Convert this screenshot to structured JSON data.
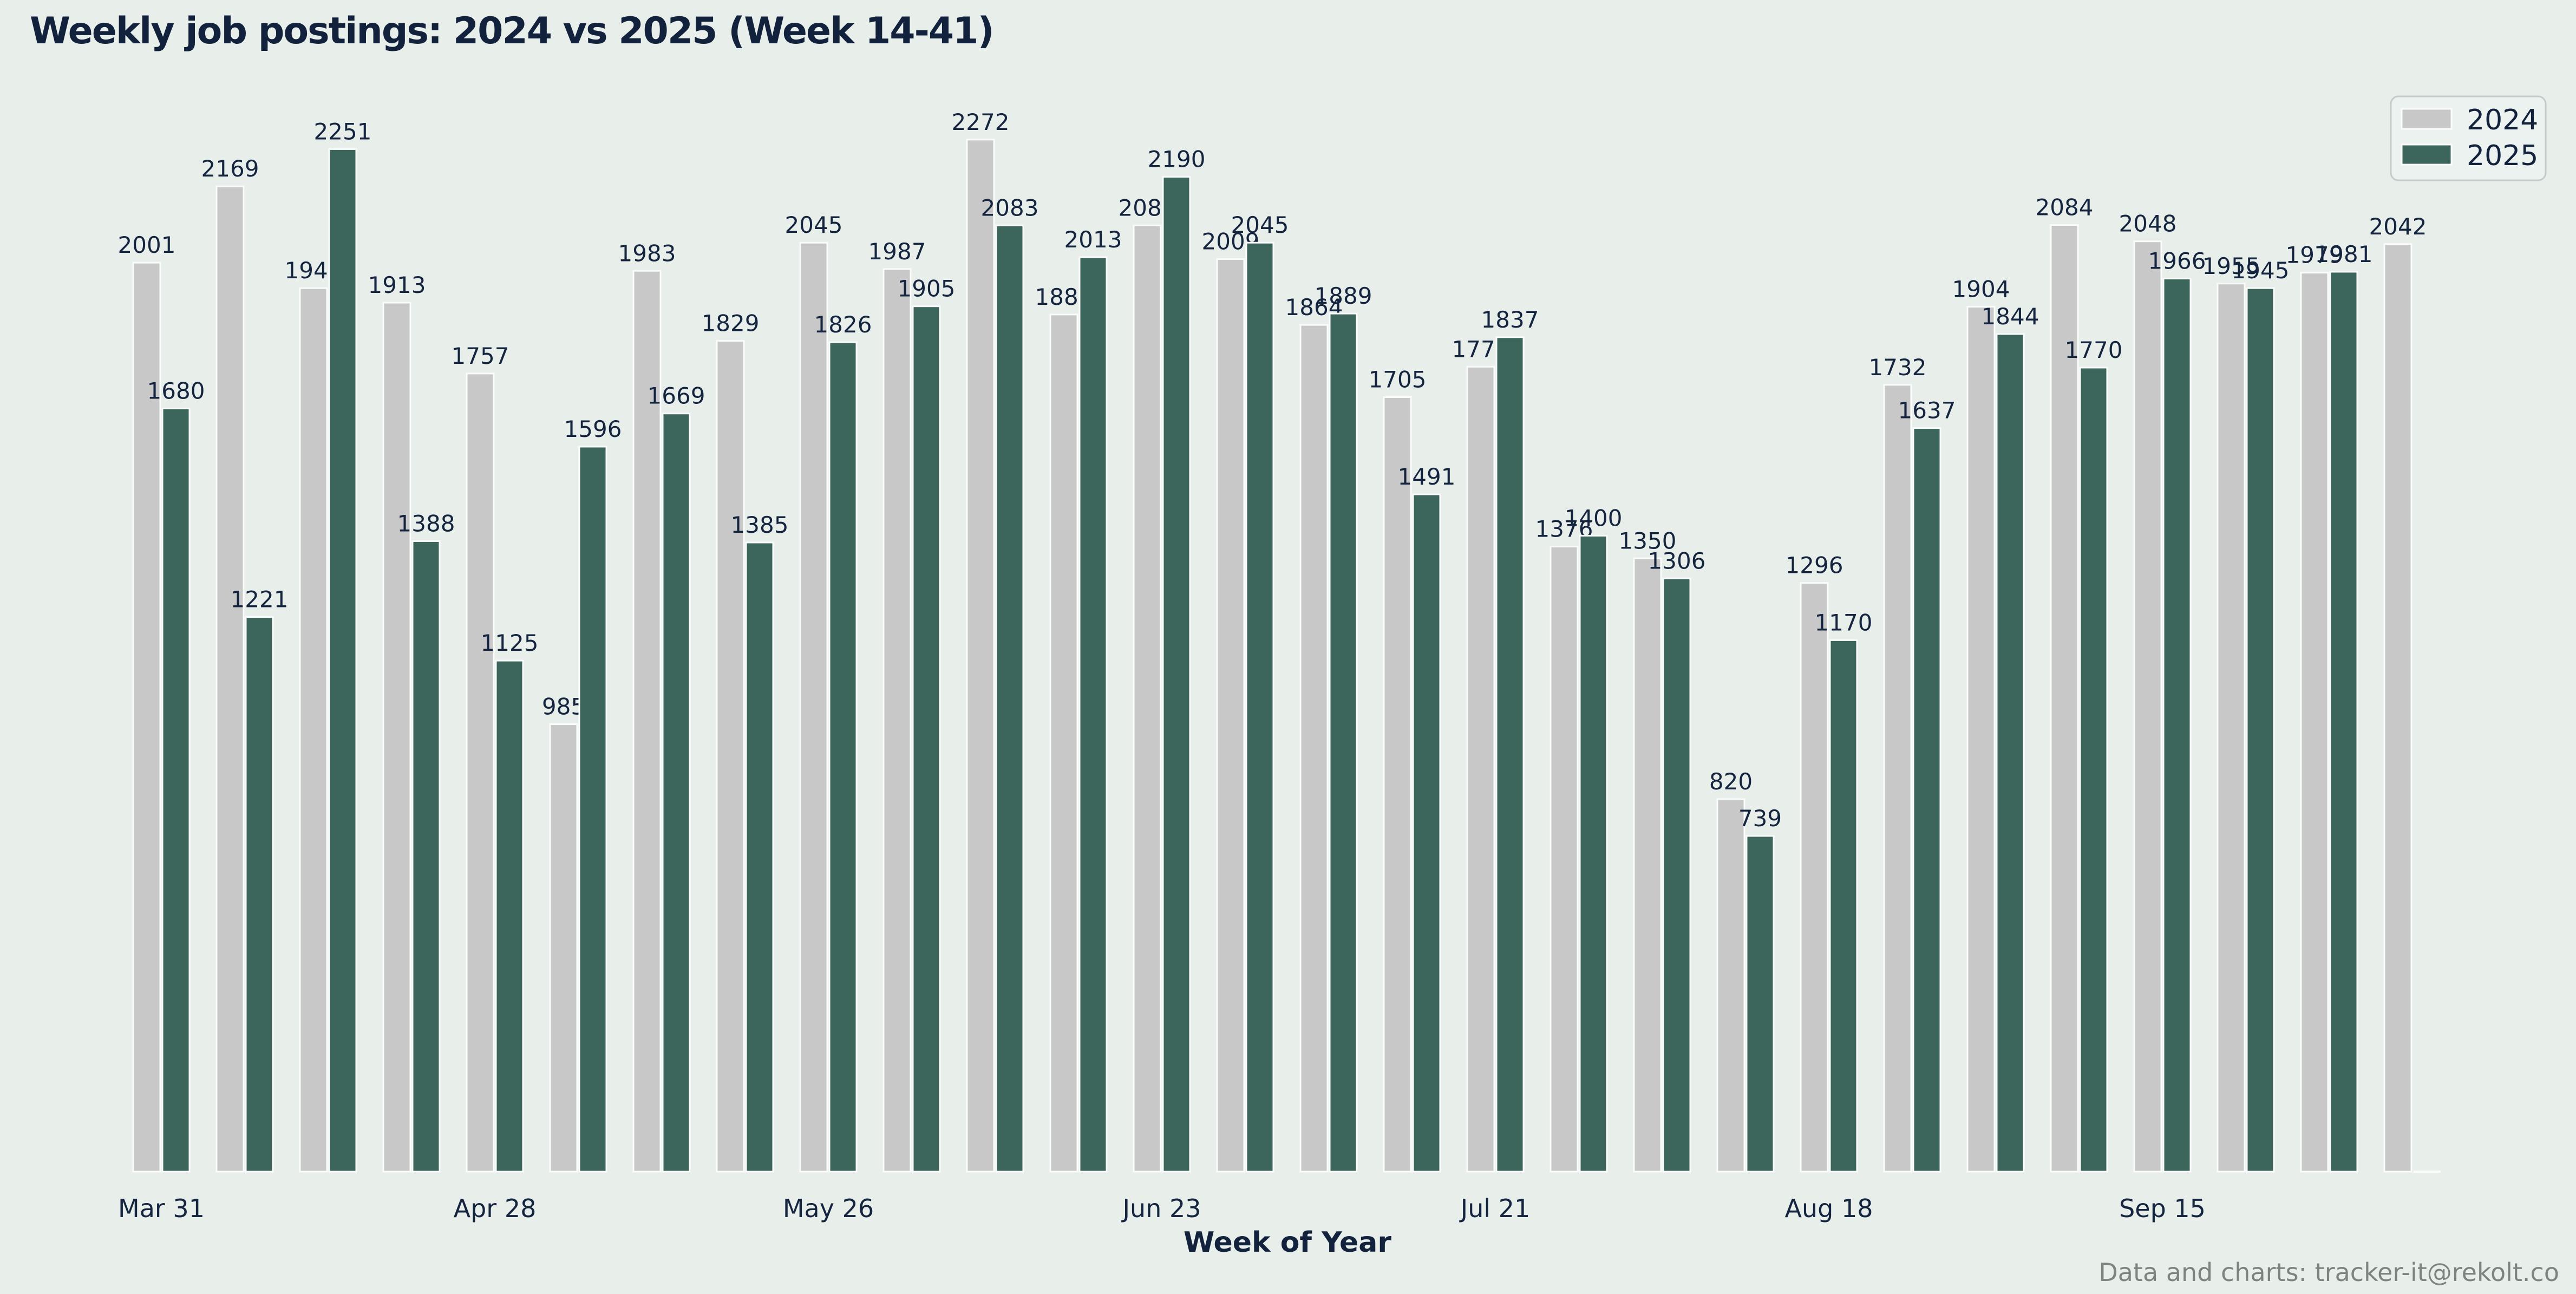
{
  "title": "Weekly job postings: 2024 vs 2025 (Week 14-41)",
  "x_axis_label": "Week of Year",
  "footer": "Data and charts: tracker-it@rekolt.co",
  "legend": {
    "position": "upper right",
    "items": [
      {
        "label": "2024",
        "color": "#c8c8c8"
      },
      {
        "label": "2025",
        "color": "#3c655c"
      }
    ]
  },
  "colors": {
    "background": "#e8efeb",
    "bar_2024": "#c8c8c8",
    "bar_2025": "#3c655c",
    "bar_edge": "#fafcfb",
    "text_navy": "#15253f",
    "footer_gray": "#7d847f",
    "legend_border": "#c5ccc8",
    "legend_fill": "#ecf2ef"
  },
  "chart_data": {
    "type": "bar",
    "title": "Weekly job postings: 2024 vs 2025 (Week 14-41)",
    "xlabel": "Week of Year",
    "ylabel": "",
    "grid": false,
    "bar_value_labels": true,
    "legend_position": "upper right",
    "ylim": [
      0,
      2580
    ],
    "weeks": [
      14,
      15,
      16,
      17,
      18,
      19,
      20,
      21,
      22,
      23,
      24,
      25,
      26,
      27,
      28,
      29,
      30,
      31,
      32,
      33,
      34,
      35,
      36,
      37,
      38,
      39,
      40,
      41
    ],
    "x_tick_labels": [
      "Mar 31",
      "Apr 28",
      "May 26",
      "Jun 23",
      "Jul 21",
      "Aug 18",
      "Sep 15"
    ],
    "x_tick_group_indices": [
      0,
      4,
      8,
      12,
      16,
      20,
      24
    ],
    "series": [
      {
        "name": "2024",
        "color": "#c8c8c8",
        "values": [
          2001,
          2169,
          1945,
          1913,
          1757,
          985,
          1983,
          1829,
          2045,
          1987,
          2272,
          1887,
          2083,
          2009,
          1864,
          1705,
          1772,
          1376,
          1350,
          820,
          1296,
          1732,
          1904,
          2084,
          2048,
          1955,
          1979,
          2042
        ]
      },
      {
        "name": "2025",
        "color": "#3c655c",
        "values": [
          1680,
          1221,
          2251,
          1388,
          1125,
          1596,
          1669,
          1385,
          1826,
          1905,
          2083,
          2013,
          2190,
          2045,
          1889,
          1491,
          1837,
          1400,
          1306,
          739,
          1170,
          1637,
          1844,
          1770,
          1966,
          1945,
          1981,
          null
        ]
      }
    ]
  }
}
